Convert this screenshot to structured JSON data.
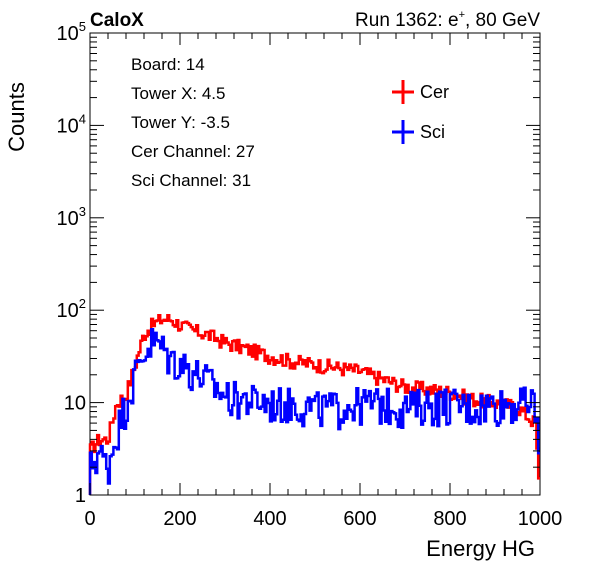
{
  "header": {
    "brand": "CaloX",
    "run_info": "Run 1362: e",
    "run_info_sup": "+",
    "run_info_tail": ", 80 GeV"
  },
  "info_box": {
    "lines": [
      "Board: 14",
      "Tower X: 4.5",
      "Tower Y: -3.5",
      "Cer Channel: 27",
      "Sci Channel: 31"
    ]
  },
  "colors": {
    "cer": "#ff0000",
    "sci": "#0000ff",
    "axis": "#000000"
  },
  "chart_data": {
    "type": "line",
    "xlabel": "Energy HG",
    "ylabel": "Counts",
    "xlim": [
      0,
      1000
    ],
    "ylim": [
      1,
      100000
    ],
    "y_scale": "log",
    "grid": false,
    "legend_position": "top-right",
    "x_ticks": [
      "0",
      "200",
      "400",
      "600",
      "800",
      "1000"
    ],
    "y_ticks": [
      {
        "base": "1",
        "exp": ""
      },
      {
        "base": "10",
        "exp": ""
      },
      {
        "base": "10",
        "exp": "2"
      },
      {
        "base": "10",
        "exp": "3"
      },
      {
        "base": "10",
        "exp": "4"
      },
      {
        "base": "10",
        "exp": "5"
      }
    ],
    "series": [
      {
        "name": "Cer",
        "x": [
          0,
          20,
          40,
          60,
          80,
          100,
          120,
          140,
          160,
          180,
          200,
          230,
          260,
          300,
          350,
          400,
          450,
          500,
          550,
          600,
          650,
          700,
          750,
          800,
          850,
          900,
          950,
          990,
          1000
        ],
        "y": [
          3,
          4,
          4,
          10,
          12,
          25,
          55,
          70,
          80,
          80,
          70,
          60,
          55,
          45,
          38,
          32,
          28,
          26,
          24,
          22,
          18,
          15,
          14,
          13,
          11,
          10,
          9,
          6,
          1
        ]
      },
      {
        "name": "Sci",
        "x": [
          0,
          20,
          40,
          60,
          80,
          100,
          120,
          140,
          160,
          180,
          200,
          230,
          260,
          300,
          350,
          400,
          450,
          500,
          550,
          600,
          650,
          700,
          750,
          800,
          850,
          900,
          950,
          990,
          1000
        ],
        "y": [
          2,
          3,
          2,
          5,
          10,
          20,
          35,
          48,
          40,
          30,
          28,
          22,
          18,
          12,
          11,
          10,
          10,
          9,
          9,
          10,
          10,
          9,
          10,
          10,
          9,
          10,
          10,
          10,
          2
        ]
      }
    ]
  }
}
